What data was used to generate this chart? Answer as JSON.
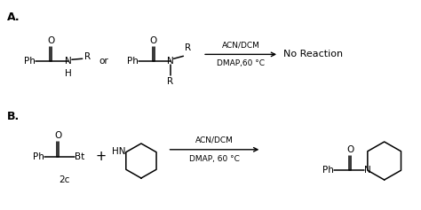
{
  "title_A": "A.",
  "title_B": "B.",
  "reaction_A_cond1": "ACN/DCM",
  "reaction_A_cond2": "DMAP,60 °C",
  "reaction_A_product": "No Reaction",
  "reaction_B_cond1": "ACN/DCM",
  "reaction_B_cond2": "DMAP, 60 °C",
  "label_2c": "2c",
  "or_text": "or",
  "plus_text": "+",
  "bg_color": "#ffffff",
  "text_color": "#000000",
  "figsize": [
    4.74,
    2.37
  ],
  "dpi": 100
}
